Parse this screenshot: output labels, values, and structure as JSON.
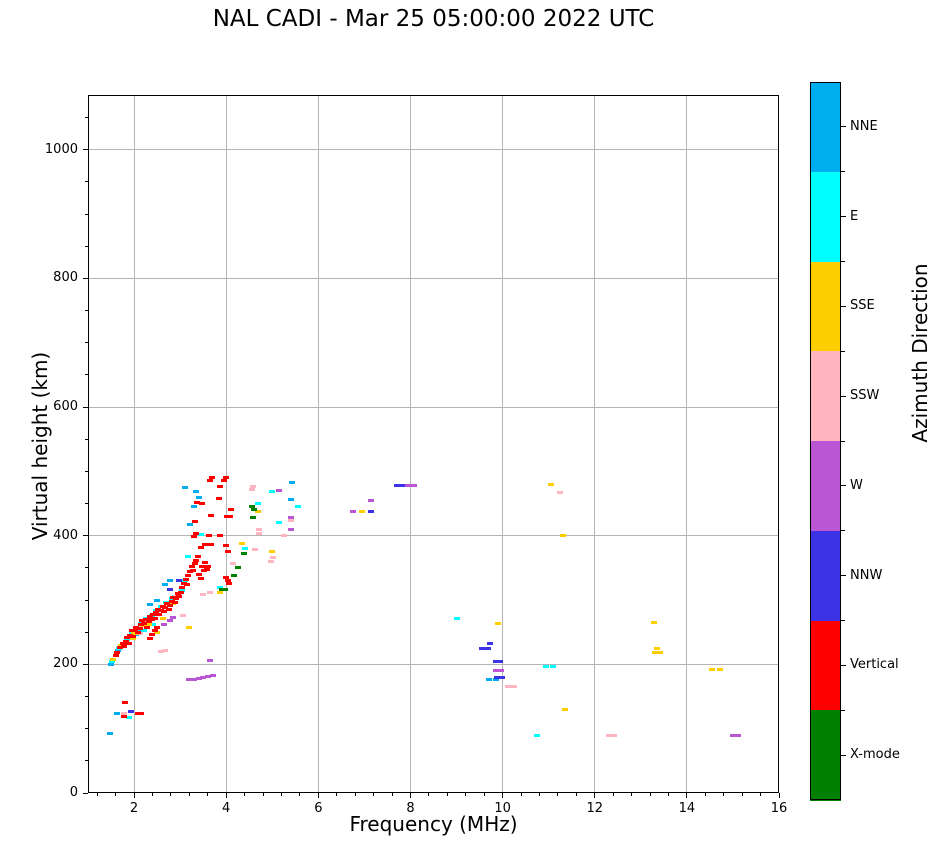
{
  "title": "NAL CADI - Mar 25 05:00:00 2022 UTC",
  "xlabel": "Frequency (MHz)",
  "ylabel": "Virtual height (km)",
  "colorbar": {
    "label": "Azimuth Direction",
    "categories": [
      {
        "name": "NNE",
        "color": "#00AEEF"
      },
      {
        "name": "E",
        "color": "#00FFFF"
      },
      {
        "name": "SSE",
        "color": "#FFCE00"
      },
      {
        "name": "SSW",
        "color": "#FFB6C1"
      },
      {
        "name": "W",
        "color": "#BA55D3"
      },
      {
        "name": "NNW",
        "color": "#3C32E6"
      },
      {
        "name": "Vertical",
        "color": "#FF0000"
      },
      {
        "name": "X-mode",
        "color": "#008000"
      }
    ]
  },
  "chart_data": {
    "type": "scatter",
    "title": "NAL CADI - Mar 25 05:00:00 2022 UTC",
    "xlabel": "Frequency (MHz)",
    "ylabel": "Virtual height (km)",
    "xlim": [
      1,
      16
    ],
    "ylim": [
      0,
      1085
    ],
    "grid": true,
    "x_ticks": [
      2,
      4,
      6,
      8,
      10,
      12,
      14,
      16
    ],
    "x_tick_labels": [
      "2",
      "4",
      "6",
      "8",
      "10",
      "12",
      "14",
      "16"
    ],
    "y_ticks": [
      0,
      200,
      400,
      600,
      800,
      1000
    ],
    "y_tick_labels": [
      "0",
      "200",
      "400",
      "600",
      "800",
      "1000"
    ],
    "legend_position": "right-colorbar",
    "series": [
      {
        "name": "NNE",
        "color": "#00AEEF",
        "points": [
          [
            1.47,
            92
          ],
          [
            1.5,
            200
          ],
          [
            1.62,
            123
          ],
          [
            1.65,
            222
          ],
          [
            1.93,
            240
          ],
          [
            2.05,
            246
          ],
          [
            2.13,
            252
          ],
          [
            2.35,
            293
          ],
          [
            2.5,
            300
          ],
          [
            2.67,
            324
          ],
          [
            2.78,
            330
          ],
          [
            3.1,
            475
          ],
          [
            3.35,
            468
          ],
          [
            3.4,
            459
          ],
          [
            3.3,
            445
          ],
          [
            3.22,
            418
          ],
          [
            5.43,
            483
          ],
          [
            5.4,
            456
          ],
          [
            9.7,
            176
          ],
          [
            9.85,
            176
          ]
        ]
      },
      {
        "name": "E",
        "color": "#00FFFF",
        "points": [
          [
            1.52,
            204
          ],
          [
            1.68,
            224
          ],
          [
            1.85,
            238
          ],
          [
            1.9,
            118
          ],
          [
            1.95,
            248
          ],
          [
            2.05,
            254
          ],
          [
            2.15,
            264
          ],
          [
            2.22,
            252
          ],
          [
            2.25,
            272
          ],
          [
            2.38,
            276
          ],
          [
            2.42,
            262
          ],
          [
            2.48,
            284
          ],
          [
            2.58,
            290
          ],
          [
            2.7,
            296
          ],
          [
            2.82,
            302
          ],
          [
            2.88,
            306
          ],
          [
            2.95,
            308
          ],
          [
            3.05,
            315
          ],
          [
            3.1,
            330
          ],
          [
            3.17,
            368
          ],
          [
            3.45,
            402
          ],
          [
            3.86,
            319
          ],
          [
            4.4,
            380
          ],
          [
            4.7,
            450
          ],
          [
            5.0,
            468
          ],
          [
            5.14,
            420
          ],
          [
            5.55,
            445
          ],
          [
            9.0,
            272
          ],
          [
            10.75,
            89
          ],
          [
            10.95,
            196
          ],
          [
            11.1,
            196
          ]
        ]
      },
      {
        "name": "SSE",
        "color": "#FFCE00",
        "points": [
          [
            1.55,
            208
          ],
          [
            1.72,
            230
          ],
          [
            1.98,
            240
          ],
          [
            2.0,
            248
          ],
          [
            2.2,
            260
          ],
          [
            2.32,
            262
          ],
          [
            2.5,
            250
          ],
          [
            2.62,
            272
          ],
          [
            2.85,
            295
          ],
          [
            3.2,
            257
          ],
          [
            3.87,
            312
          ],
          [
            4.35,
            388
          ],
          [
            4.7,
            438
          ],
          [
            5.0,
            375
          ],
          [
            6.95,
            438
          ],
          [
            9.9,
            263
          ],
          [
            11.05,
            480
          ],
          [
            11.32,
            400
          ],
          [
            11.35,
            130
          ],
          [
            13.28,
            265
          ],
          [
            13.3,
            219
          ],
          [
            13.42,
            219
          ],
          [
            13.35,
            225
          ],
          [
            14.55,
            192
          ],
          [
            14.72,
            192
          ]
        ]
      },
      {
        "name": "SSW",
        "color": "#FFB6C1",
        "points": [
          [
            1.78,
            123
          ],
          [
            2.12,
            248
          ],
          [
            2.3,
            268
          ],
          [
            2.58,
            220
          ],
          [
            2.68,
            222
          ],
          [
            2.9,
            305
          ],
          [
            3.07,
            276
          ],
          [
            3.5,
            308
          ],
          [
            3.65,
            312
          ],
          [
            4.15,
            356
          ],
          [
            4.62,
            378
          ],
          [
            4.98,
            360
          ],
          [
            5.02,
            366
          ],
          [
            4.72,
            410
          ],
          [
            4.72,
            404
          ],
          [
            5.25,
            400
          ],
          [
            5.4,
            424
          ],
          [
            4.58,
            477
          ],
          [
            4.55,
            472
          ],
          [
            10.12,
            166
          ],
          [
            10.25,
            166
          ],
          [
            11.25,
            467
          ],
          [
            12.3,
            89
          ],
          [
            12.42,
            89
          ]
        ]
      },
      {
        "name": "W",
        "color": "#BA55D3",
        "points": [
          [
            2.65,
            262
          ],
          [
            2.78,
            268
          ],
          [
            2.85,
            273
          ],
          [
            3.2,
            177
          ],
          [
            3.3,
            177
          ],
          [
            3.4,
            178
          ],
          [
            3.5,
            180
          ],
          [
            3.6,
            181
          ],
          [
            3.72,
            182
          ],
          [
            3.65,
            206
          ],
          [
            5.15,
            470
          ],
          [
            5.4,
            429
          ],
          [
            5.4,
            409
          ],
          [
            6.75,
            438
          ],
          [
            7.15,
            455
          ],
          [
            7.95,
            478
          ],
          [
            8.08,
            478
          ],
          [
            9.85,
            190
          ],
          [
            9.97,
            190
          ],
          [
            15.0,
            89
          ],
          [
            15.12,
            89
          ]
        ]
      },
      {
        "name": "NNW",
        "color": "#3C32E6",
        "points": [
          [
            1.93,
            126
          ],
          [
            2.78,
            316
          ],
          [
            2.97,
            331
          ],
          [
            7.15,
            438
          ],
          [
            7.7,
            478
          ],
          [
            7.82,
            478
          ],
          [
            9.55,
            225
          ],
          [
            9.68,
            225
          ],
          [
            9.72,
            233
          ],
          [
            9.85,
            205
          ],
          [
            9.95,
            205
          ],
          [
            9.88,
            179
          ],
          [
            9.98,
            179
          ]
        ]
      },
      {
        "name": "Vertical",
        "color": "#FF0000",
        "points": [
          [
            1.8,
            141
          ],
          [
            1.78,
            119
          ],
          [
            2.08,
            124
          ],
          [
            2.15,
            124
          ],
          [
            1.6,
            213
          ],
          [
            1.63,
            219
          ],
          [
            1.7,
            226
          ],
          [
            1.75,
            232
          ],
          [
            1.78,
            228
          ],
          [
            1.82,
            236
          ],
          [
            1.85,
            242
          ],
          [
            1.88,
            232
          ],
          [
            1.92,
            245
          ],
          [
            1.95,
            252
          ],
          [
            1.98,
            244
          ],
          [
            2.02,
            252
          ],
          [
            2.05,
            258
          ],
          [
            2.08,
            250
          ],
          [
            2.12,
            256
          ],
          [
            2.15,
            262
          ],
          [
            2.18,
            268
          ],
          [
            2.22,
            264
          ],
          [
            2.25,
            270
          ],
          [
            2.28,
            258
          ],
          [
            2.32,
            266
          ],
          [
            2.35,
            274
          ],
          [
            2.38,
            270
          ],
          [
            2.42,
            278
          ],
          [
            2.45,
            272
          ],
          [
            2.48,
            280
          ],
          [
            2.52,
            286
          ],
          [
            2.55,
            278
          ],
          [
            2.58,
            284
          ],
          [
            2.62,
            290
          ],
          [
            2.65,
            282
          ],
          [
            2.68,
            288
          ],
          [
            2.72,
            294
          ],
          [
            2.75,
            286
          ],
          [
            2.78,
            292
          ],
          [
            2.82,
            298
          ],
          [
            2.85,
            304
          ],
          [
            2.88,
            296
          ],
          [
            2.92,
            302
          ],
          [
            2.95,
            310
          ],
          [
            2.98,
            306
          ],
          [
            3.02,
            312
          ],
          [
            3.05,
            320
          ],
          [
            3.08,
            326
          ],
          [
            3.12,
            332
          ],
          [
            3.15,
            324
          ],
          [
            3.18,
            338
          ],
          [
            3.22,
            344
          ],
          [
            3.25,
            352
          ],
          [
            3.28,
            346
          ],
          [
            3.32,
            356
          ],
          [
            3.35,
            362
          ],
          [
            3.38,
            368
          ],
          [
            3.42,
            340
          ],
          [
            3.45,
            334
          ],
          [
            3.48,
            352
          ],
          [
            3.52,
            346
          ],
          [
            3.55,
            358
          ],
          [
            2.35,
            240
          ],
          [
            2.4,
            246
          ],
          [
            2.45,
            252
          ],
          [
            2.5,
            258
          ],
          [
            3.3,
            398
          ],
          [
            3.35,
            404
          ],
          [
            3.63,
            400
          ],
          [
            3.66,
            386
          ],
          [
            3.87,
            401
          ],
          [
            3.85,
            458
          ],
          [
            3.87,
            477
          ],
          [
            3.65,
            485
          ],
          [
            3.7,
            490
          ],
          [
            3.95,
            485
          ],
          [
            4.0,
            490
          ],
          [
            4.02,
            430
          ],
          [
            4.08,
            430
          ],
          [
            4.1,
            440
          ],
          [
            3.32,
            422
          ],
          [
            3.37,
            452
          ],
          [
            3.47,
            450
          ],
          [
            3.67,
            432
          ],
          [
            4.04,
            375
          ],
          [
            4.0,
            385
          ],
          [
            4.0,
            335
          ],
          [
            4.03,
            330
          ],
          [
            4.06,
            325
          ],
          [
            3.46,
            381
          ],
          [
            3.54,
            387
          ],
          [
            3.6,
            352
          ],
          [
            3.58,
            347
          ]
        ]
      },
      {
        "name": "X-mode",
        "color": "#008000",
        "points": [
          [
            3.9,
            317
          ],
          [
            3.98,
            317
          ],
          [
            4.18,
            338
          ],
          [
            4.26,
            350
          ],
          [
            4.38,
            372
          ],
          [
            4.58,
            429
          ],
          [
            4.56,
            446
          ],
          [
            4.6,
            441
          ]
        ]
      }
    ]
  }
}
